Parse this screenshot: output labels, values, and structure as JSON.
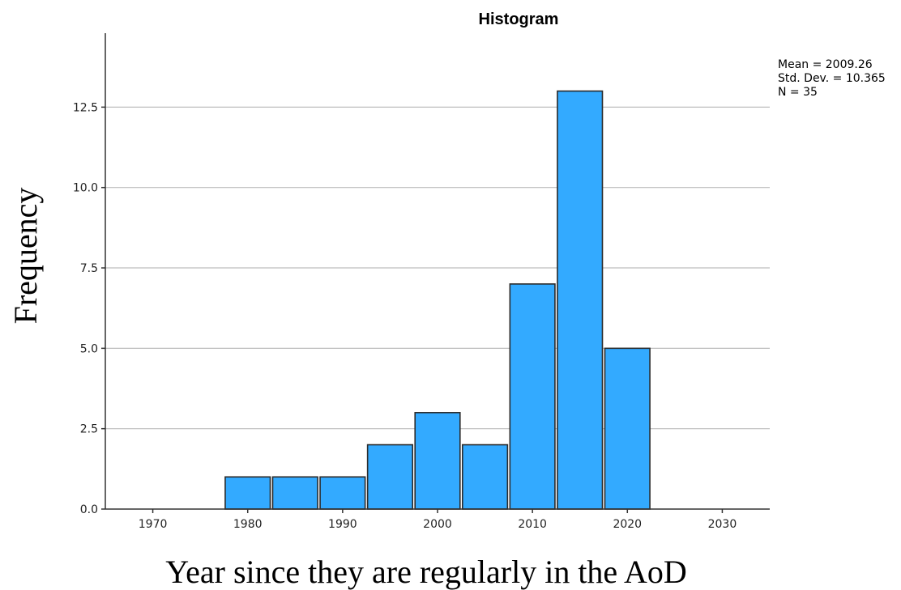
{
  "chart_data": {
    "type": "bar",
    "title": "Histogram",
    "xlabel": "Year since they are regularly in the AoD",
    "ylabel": "Frequency",
    "bin_width": 5,
    "bins": [
      {
        "start": 1977.5,
        "end": 1982.5,
        "value": 1
      },
      {
        "start": 1982.5,
        "end": 1987.5,
        "value": 1
      },
      {
        "start": 1987.5,
        "end": 1992.5,
        "value": 1
      },
      {
        "start": 1992.5,
        "end": 1997.5,
        "value": 2
      },
      {
        "start": 1997.5,
        "end": 2002.5,
        "value": 3
      },
      {
        "start": 2002.5,
        "end": 2007.5,
        "value": 2
      },
      {
        "start": 2007.5,
        "end": 2012.5,
        "value": 7
      },
      {
        "start": 2012.5,
        "end": 2017.5,
        "value": 13
      },
      {
        "start": 2017.5,
        "end": 2022.5,
        "value": 5
      }
    ],
    "x_ticks": [
      "1970",
      "1980",
      "1990",
      "2000",
      "2010",
      "2020",
      "2030"
    ],
    "x_tick_values": [
      1970,
      1980,
      1990,
      2000,
      2010,
      2020,
      2030
    ],
    "y_ticks": [
      "0.0",
      "2.5",
      "5.0",
      "7.5",
      "10.0",
      "12.5"
    ],
    "y_tick_values": [
      0,
      2.5,
      5,
      7.5,
      10,
      12.5
    ],
    "xlim": [
      1965,
      2035
    ],
    "ylim": [
      0,
      14.8
    ],
    "grid": "horizontal",
    "bar_color": "#33aaff",
    "bar_edge_color": "#2b2b2b",
    "stats": {
      "mean": "Mean = 2009.26",
      "std_dev": "Std. Dev. = 10.365",
      "n": "N = 35"
    },
    "legend_position": "top-right"
  }
}
